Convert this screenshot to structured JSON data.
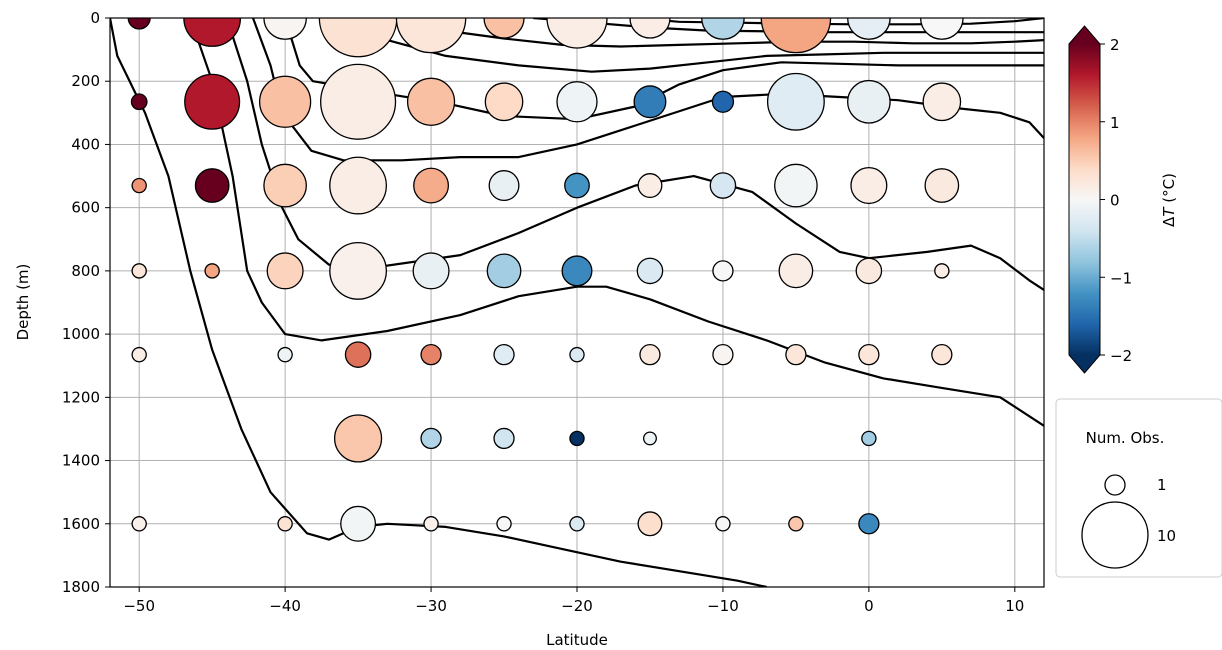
{
  "chart_data": {
    "type": "scatter",
    "xlabel": "Latitude",
    "ylabel": "Depth (m)",
    "xlim": [
      -52,
      12
    ],
    "ylim": [
      1800,
      0
    ],
    "y_inverted": true,
    "grid": true,
    "xticks": [
      -50,
      -40,
      -30,
      -20,
      -10,
      0,
      10
    ],
    "xtick_labels": [
      "−50",
      "−40",
      "−30",
      "−20",
      "−10",
      "0",
      "10"
    ],
    "yticks": [
      0,
      200,
      400,
      600,
      800,
      1000,
      1200,
      1400,
      1600,
      1800
    ],
    "ytick_labels": [
      "0",
      "200",
      "400",
      "600",
      "800",
      "1000",
      "1200",
      "1400",
      "1600",
      "1800"
    ],
    "colorbar": {
      "label": "ΔT (°C)",
      "label_main": "Δ",
      "label_italic": "T",
      "label_unit": " (°C)",
      "range": [
        -2,
        2
      ],
      "extend": "both",
      "colormap": "RdBu_r",
      "ticks": [
        2,
        1,
        0,
        -1,
        -2
      ],
      "tick_labels": [
        "2",
        "1",
        "0",
        "−1",
        "−2"
      ]
    },
    "size_legend": {
      "title": "Num. Obs.",
      "placement": "right",
      "entries": [
        {
          "label": "1",
          "n": 1
        },
        {
          "label": "10",
          "n": 10
        }
      ]
    },
    "points": [
      {
        "lat": -50,
        "depth": 0,
        "dT": 2.0,
        "n": 1.2
      },
      {
        "lat": -45,
        "depth": 0,
        "dT": 1.6,
        "n": 8
      },
      {
        "lat": -40,
        "depth": 0,
        "dT": 0.05,
        "n": 4.5
      },
      {
        "lat": -35,
        "depth": 0,
        "dT": 0.3,
        "n": 15
      },
      {
        "lat": -30,
        "depth": 0,
        "dT": 0.25,
        "n": 12
      },
      {
        "lat": -25,
        "depth": 0,
        "dT": 0.6,
        "n": 4
      },
      {
        "lat": -20,
        "depth": 0,
        "dT": 0.15,
        "n": 9
      },
      {
        "lat": -15,
        "depth": 0,
        "dT": 0.15,
        "n": 4
      },
      {
        "lat": -10,
        "depth": 0,
        "dT": -0.6,
        "n": 4.5
      },
      {
        "lat": -5,
        "depth": 0,
        "dT": 0.8,
        "n": 12
      },
      {
        "lat": 0,
        "depth": 0,
        "dT": -0.2,
        "n": 4.5
      },
      {
        "lat": 5,
        "depth": 0,
        "dT": 0.0,
        "n": 4.5
      },
      {
        "lat": -50,
        "depth": 265,
        "dT": 2.0,
        "n": 0.6
      },
      {
        "lat": -45,
        "depth": 265,
        "dT": 1.6,
        "n": 7.5
      },
      {
        "lat": -40,
        "depth": 265,
        "dT": 0.6,
        "n": 6.5
      },
      {
        "lat": -35,
        "depth": 265,
        "dT": 0.15,
        "n": 14
      },
      {
        "lat": -30,
        "depth": 265,
        "dT": 0.6,
        "n": 5.5
      },
      {
        "lat": -25,
        "depth": 265,
        "dT": 0.4,
        "n": 3.5
      },
      {
        "lat": -20,
        "depth": 265,
        "dT": -0.1,
        "n": 4
      },
      {
        "lat": -15,
        "depth": 265,
        "dT": -1.4,
        "n": 2.5
      },
      {
        "lat": -10,
        "depth": 265,
        "dT": -1.6,
        "n": 1.1
      },
      {
        "lat": -5,
        "depth": 265,
        "dT": -0.25,
        "n": 8
      },
      {
        "lat": 0,
        "depth": 265,
        "dT": -0.15,
        "n": 4.5
      },
      {
        "lat": 5,
        "depth": 265,
        "dT": 0.15,
        "n": 3.5
      },
      {
        "lat": -50,
        "depth": 530,
        "dT": 0.9,
        "n": 0.5
      },
      {
        "lat": -45,
        "depth": 530,
        "dT": 2.0,
        "n": 2.8
      },
      {
        "lat": -40,
        "depth": 530,
        "dT": 0.5,
        "n": 4.5
      },
      {
        "lat": -35,
        "depth": 530,
        "dT": 0.15,
        "n": 8
      },
      {
        "lat": -30,
        "depth": 530,
        "dT": 0.75,
        "n": 3
      },
      {
        "lat": -25,
        "depth": 530,
        "dT": -0.15,
        "n": 2.2
      },
      {
        "lat": -20,
        "depth": 530,
        "dT": -1.2,
        "n": 1.5
      },
      {
        "lat": -15,
        "depth": 530,
        "dT": 0.15,
        "n": 1.4
      },
      {
        "lat": -10,
        "depth": 530,
        "dT": -0.35,
        "n": 1.6
      },
      {
        "lat": -5,
        "depth": 530,
        "dT": -0.05,
        "n": 4.5
      },
      {
        "lat": 0,
        "depth": 530,
        "dT": 0.15,
        "n": 3.2
      },
      {
        "lat": 5,
        "depth": 530,
        "dT": 0.2,
        "n": 2.8
      },
      {
        "lat": -50,
        "depth": 800,
        "dT": 0.25,
        "n": 0.5
      },
      {
        "lat": -45,
        "depth": 800,
        "dT": 0.8,
        "n": 0.5
      },
      {
        "lat": -40,
        "depth": 800,
        "dT": 0.45,
        "n": 3.2
      },
      {
        "lat": -35,
        "depth": 800,
        "dT": 0.1,
        "n": 8
      },
      {
        "lat": -30,
        "depth": 800,
        "dT": -0.15,
        "n": 3.2
      },
      {
        "lat": -25,
        "depth": 800,
        "dT": -0.7,
        "n": 2.8
      },
      {
        "lat": -20,
        "depth": 800,
        "dT": -1.3,
        "n": 2.2
      },
      {
        "lat": -15,
        "depth": 800,
        "dT": -0.3,
        "n": 1.6
      },
      {
        "lat": -10,
        "depth": 800,
        "dT": 0.0,
        "n": 1
      },
      {
        "lat": -5,
        "depth": 800,
        "dT": 0.15,
        "n": 2.8
      },
      {
        "lat": 0,
        "depth": 800,
        "dT": 0.2,
        "n": 1.6
      },
      {
        "lat": 5,
        "depth": 800,
        "dT": 0.15,
        "n": 0.5
      },
      {
        "lat": -50,
        "depth": 1065,
        "dT": 0.15,
        "n": 0.5
      },
      {
        "lat": -40,
        "depth": 1065,
        "dT": -0.1,
        "n": 0.5
      },
      {
        "lat": -35,
        "depth": 1065,
        "dT": 1.1,
        "n": 1.6
      },
      {
        "lat": -30,
        "depth": 1065,
        "dT": 1.0,
        "n": 1
      },
      {
        "lat": -25,
        "depth": 1065,
        "dT": -0.25,
        "n": 1
      },
      {
        "lat": -20,
        "depth": 1065,
        "dT": -0.3,
        "n": 0.5
      },
      {
        "lat": -15,
        "depth": 1065,
        "dT": 0.2,
        "n": 1
      },
      {
        "lat": -10,
        "depth": 1065,
        "dT": 0.05,
        "n": 1
      },
      {
        "lat": -5,
        "depth": 1065,
        "dT": 0.25,
        "n": 1
      },
      {
        "lat": 0,
        "depth": 1065,
        "dT": 0.25,
        "n": 1
      },
      {
        "lat": 5,
        "depth": 1065,
        "dT": 0.25,
        "n": 1
      },
      {
        "lat": -35,
        "depth": 1330,
        "dT": 0.55,
        "n": 5.5
      },
      {
        "lat": -30,
        "depth": 1330,
        "dT": -0.6,
        "n": 1
      },
      {
        "lat": -25,
        "depth": 1330,
        "dT": -0.4,
        "n": 1
      },
      {
        "lat": -20,
        "depth": 1330,
        "dT": -2.0,
        "n": 0.5
      },
      {
        "lat": -15,
        "depth": 1330,
        "dT": -0.1,
        "n": 0.4
      },
      {
        "lat": 0,
        "depth": 1330,
        "dT": -0.7,
        "n": 0.5
      },
      {
        "lat": -50,
        "depth": 1600,
        "dT": 0.1,
        "n": 0.5
      },
      {
        "lat": -40,
        "depth": 1600,
        "dT": 0.3,
        "n": 0.5
      },
      {
        "lat": -35,
        "depth": 1600,
        "dT": -0.05,
        "n": 3
      },
      {
        "lat": -30,
        "depth": 1600,
        "dT": 0.1,
        "n": 0.5
      },
      {
        "lat": -25,
        "depth": 1600,
        "dT": 0.0,
        "n": 0.5
      },
      {
        "lat": -20,
        "depth": 1600,
        "dT": -0.3,
        "n": 0.5
      },
      {
        "lat": -15,
        "depth": 1600,
        "dT": 0.35,
        "n": 1.4
      },
      {
        "lat": -10,
        "depth": 1600,
        "dT": 0.0,
        "n": 0.5
      },
      {
        "lat": -5,
        "depth": 1600,
        "dT": 0.55,
        "n": 0.5
      },
      {
        "lat": 0,
        "depth": 1600,
        "dT": -1.3,
        "n": 1
      }
    ],
    "contours": [
      [
        [
          -52,
          0
        ],
        [
          -51.5,
          120
        ],
        [
          -49.6,
          300
        ],
        [
          -48,
          500
        ],
        [
          -46.5,
          800
        ],
        [
          -45,
          1050
        ],
        [
          -43,
          1300
        ],
        [
          -41,
          1500
        ],
        [
          -38.5,
          1630
        ],
        [
          -37,
          1650
        ],
        [
          -35,
          1610
        ],
        [
          -33,
          1600
        ],
        [
          -29,
          1610
        ],
        [
          -25,
          1640
        ],
        [
          -21,
          1680
        ],
        [
          -17,
          1720
        ],
        [
          -13,
          1750
        ],
        [
          -9,
          1780
        ],
        [
          -7,
          1800
        ]
      ],
      [
        [
          -46.5,
          0
        ],
        [
          -45,
          200
        ],
        [
          -43.6,
          500
        ],
        [
          -42.6,
          800
        ],
        [
          -41.6,
          900
        ],
        [
          -40,
          1000
        ],
        [
          -37.5,
          1020
        ],
        [
          -33,
          990
        ],
        [
          -28,
          940
        ],
        [
          -24,
          880
        ],
        [
          -20,
          850
        ],
        [
          -18,
          850
        ],
        [
          -15,
          890
        ],
        [
          -11,
          960
        ],
        [
          -7,
          1020
        ],
        [
          -3,
          1090
        ],
        [
          1,
          1140
        ],
        [
          5,
          1170
        ],
        [
          9,
          1200
        ],
        [
          12,
          1290
        ]
      ],
      [
        [
          -44,
          0
        ],
        [
          -42.6,
          200
        ],
        [
          -41.6,
          400
        ],
        [
          -40.2,
          600
        ],
        [
          -39.1,
          700
        ],
        [
          -37,
          780
        ],
        [
          -34,
          790
        ],
        [
          -28,
          750
        ],
        [
          -24,
          680
        ],
        [
          -20,
          600
        ],
        [
          -16,
          530
        ],
        [
          -12,
          500
        ],
        [
          -8,
          550
        ],
        [
          -5,
          650
        ],
        [
          -2,
          740
        ],
        [
          0,
          760
        ],
        [
          4,
          740
        ],
        [
          7,
          720
        ],
        [
          9,
          760
        ],
        [
          11,
          830
        ],
        [
          12,
          860
        ]
      ],
      [
        [
          -42.2,
          0
        ],
        [
          -41,
          150
        ],
        [
          -40.2,
          300
        ],
        [
          -38.2,
          420
        ],
        [
          -36,
          450
        ],
        [
          -32,
          450
        ],
        [
          -28,
          440
        ],
        [
          -24,
          440
        ],
        [
          -20,
          400
        ],
        [
          -16,
          340
        ],
        [
          -12,
          280
        ],
        [
          -10,
          250
        ],
        [
          -6,
          240
        ],
        [
          -2,
          250
        ],
        [
          2,
          260
        ],
        [
          6,
          285
        ],
        [
          9,
          300
        ],
        [
          11,
          330
        ],
        [
          12,
          380
        ]
      ],
      [
        [
          -40,
          0
        ],
        [
          -39,
          150
        ],
        [
          -38.1,
          200
        ],
        [
          -33,
          240
        ],
        [
          -29,
          270
        ],
        [
          -25,
          310
        ],
        [
          -20,
          320
        ],
        [
          -16,
          280
        ],
        [
          -13,
          210
        ],
        [
          -10,
          165
        ],
        [
          -6,
          140
        ],
        [
          -2,
          145
        ],
        [
          2,
          150
        ],
        [
          6,
          150
        ],
        [
          9,
          150
        ],
        [
          12,
          150
        ]
      ],
      [
        [
          -35.5,
          0
        ],
        [
          -33,
          70
        ],
        [
          -29,
          120
        ],
        [
          -24,
          150
        ],
        [
          -19,
          170
        ],
        [
          -15,
          160
        ],
        [
          -11,
          140
        ],
        [
          -7,
          120
        ],
        [
          -3,
          115
        ],
        [
          1,
          110
        ],
        [
          5,
          110
        ],
        [
          9,
          110
        ],
        [
          12,
          110
        ]
      ],
      [
        [
          -33,
          0
        ],
        [
          -29,
          40
        ],
        [
          -25,
          65
        ],
        [
          -21,
          85
        ],
        [
          -17,
          90
        ],
        [
          -13,
          85
        ],
        [
          -9,
          80
        ],
        [
          -5,
          75
        ],
        [
          -1,
          75
        ],
        [
          3,
          80
        ],
        [
          7,
          80
        ],
        [
          10,
          75
        ],
        [
          12,
          70
        ]
      ],
      [
        [
          -23,
          0
        ],
        [
          -19,
          15
        ],
        [
          -15,
          30
        ],
        [
          -11,
          40
        ],
        [
          -7,
          42
        ],
        [
          -3,
          45
        ],
        [
          1,
          45
        ],
        [
          5,
          45
        ],
        [
          9,
          45
        ],
        [
          12,
          45
        ]
      ],
      [
        [
          -16,
          0
        ],
        [
          -13,
          12
        ],
        [
          -9,
          15
        ],
        [
          -5,
          18
        ],
        [
          -1,
          20
        ],
        [
          3,
          20
        ],
        [
          7,
          18
        ],
        [
          10,
          10
        ],
        [
          12,
          0
        ]
      ]
    ]
  }
}
